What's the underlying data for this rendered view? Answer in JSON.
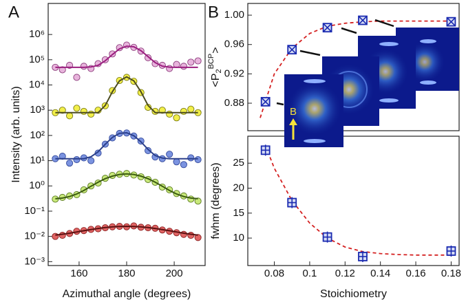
{
  "chart_data": [
    {
      "type": "scatter",
      "panel_label": "A",
      "ylabel": "Intensity (arb. units)",
      "xlabel": "Azimuthal angle (degrees)",
      "log_y": true,
      "xlim": [
        147,
        213
      ],
      "ylim": [
        0.0007,
        17000000
      ],
      "xticks": [
        160,
        180,
        200
      ],
      "yticks": [
        {
          "value": 0.001,
          "label": "10⁻³"
        },
        {
          "value": 0.01,
          "label": "10⁻²"
        },
        {
          "value": 0.1,
          "label": "10⁻¹"
        },
        {
          "value": 1,
          "label": "10⁰"
        },
        {
          "value": 10,
          "label": "10¹"
        },
        {
          "value": 100,
          "label": "10²"
        },
        {
          "value": 1000,
          "label": "10³"
        },
        {
          "value": 10000,
          "label": "10⁴"
        },
        {
          "value": 100000,
          "label": "10⁵"
        },
        {
          "value": 1000000,
          "label": "10⁶"
        }
      ],
      "x": [
        150,
        153,
        156,
        159,
        162,
        165,
        168,
        171,
        174,
        177,
        180,
        183,
        186,
        189,
        192,
        195,
        198,
        201,
        204,
        207,
        210
      ],
      "series": [
        {
          "color": "#e8b4dc",
          "edgecolor": "#8a3a7a",
          "fit_color": "#9b1f7f",
          "values": [
            50000,
            40000,
            60000,
            20000,
            55000,
            45000,
            70000,
            100000,
            170000,
            300000,
            380000,
            310000,
            220000,
            120000,
            70000,
            60000,
            45000,
            65000,
            55000,
            80000,
            90000
          ],
          "fit": [
            50000,
            50000,
            50000,
            50000,
            50000,
            52000,
            60000,
            91000,
            160000,
            270000,
            344000,
            327000,
            230000,
            133000,
            77000,
            56000,
            51000,
            50000,
            50000,
            50000,
            50000
          ]
        },
        {
          "color": "#f2ef4a",
          "edgecolor": "#7a7a10",
          "fit_color": "#4a4a20",
          "values": [
            800,
            1000,
            600,
            1200,
            900,
            700,
            1000,
            1500,
            6000,
            15000,
            20000,
            14000,
            5000,
            1300,
            900,
            1000,
            700,
            500,
            900,
            1100,
            800
          ],
          "fit": [
            800,
            800,
            800,
            800,
            800,
            800,
            800,
            1540,
            5400,
            14600,
            20800,
            14600,
            5400,
            1540,
            800,
            800,
            800,
            800,
            800,
            800,
            800
          ]
        },
        {
          "color": "#7b93e0",
          "edgecolor": "#33499a",
          "fit_color": "#2b3f8a",
          "values": [
            12,
            15,
            8,
            11,
            13,
            10,
            20,
            45,
            80,
            120,
            125,
            95,
            60,
            25,
            14,
            12,
            18,
            9,
            7,
            13,
            11
          ],
          "fit": [
            12,
            12,
            12,
            12,
            12,
            14.4,
            22.5,
            44.8,
            83.6,
            121,
            127.6,
            97.7,
            56,
            28,
            16,
            12.7,
            12,
            12,
            12,
            12,
            12
          ]
        },
        {
          "color": "#c8e87a",
          "edgecolor": "#5a7a20",
          "fit_color": "#3a5a10",
          "values": [
            0.3,
            0.35,
            0.4,
            0.45,
            0.7,
            1,
            1.3,
            2,
            2.6,
            2.9,
            3.1,
            2.7,
            2.3,
            1.8,
            1.4,
            0.9,
            0.7,
            0.5,
            0.4,
            0.3,
            0.25
          ],
          "fit": [
            0.31,
            0.33,
            0.38,
            0.48,
            0.66,
            0.97,
            1.4,
            1.94,
            2.45,
            2.85,
            3,
            2.85,
            2.45,
            1.94,
            1.4,
            0.97,
            0.66,
            0.48,
            0.38,
            0.33,
            0.31
          ]
        },
        {
          "color": "#e06464",
          "edgecolor": "#8a2020",
          "fit_color": "#5a1010",
          "values": [
            0.01,
            0.011,
            0.013,
            0.016,
            0.017,
            0.019,
            0.02,
            0.022,
            0.024,
            0.025,
            0.024,
            0.026,
            0.023,
            0.022,
            0.021,
            0.018,
            0.016,
            0.014,
            0.012,
            0.011,
            0.009
          ],
          "fit": [
            0.0112,
            0.0122,
            0.0134,
            0.015,
            0.0168,
            0.0187,
            0.0206,
            0.0224,
            0.0238,
            0.0247,
            0.025,
            0.0247,
            0.0238,
            0.0224,
            0.0206,
            0.0187,
            0.0168,
            0.015,
            0.0134,
            0.0122,
            0.0112
          ]
        }
      ]
    },
    {
      "type": "scatter",
      "panel_label": "B",
      "ylabel": {
        "main": "<P",
        "sub": "2",
        "sup": "BCP",
        "end": ">"
      },
      "annotation": "B",
      "marker": "x-square",
      "color": "#1a2ab0",
      "xlim": [
        0.065,
        0.1845
      ],
      "ylim": [
        0.8425,
        1.016
      ],
      "yticks": [
        {
          "value": 0.88,
          "label": "0.88"
        },
        {
          "value": 0.92,
          "label": "0.92"
        },
        {
          "value": 0.96,
          "label": "0.96"
        },
        {
          "value": 1,
          "label": "1.00"
        }
      ],
      "x": [
        0.075,
        0.09,
        0.11,
        0.13,
        0.18
      ],
      "values": [
        0.882,
        0.953,
        0.983,
        0.993,
        0.991
      ],
      "fit_x": [
        0.072,
        0.08,
        0.09,
        0.1,
        0.11,
        0.12,
        0.13,
        0.14,
        0.15,
        0.16,
        0.17,
        0.18
      ],
      "fit_values": [
        0.86,
        0.92,
        0.955,
        0.975,
        0.985,
        0.989,
        0.991,
        0.992,
        0.992,
        0.992,
        0.992,
        0.992
      ]
    },
    {
      "type": "scatter",
      "ylabel": "fwhm (degrees)",
      "xlabel": "Stoichiometry",
      "marker": "plus-square",
      "color": "#1a2ab0",
      "xlim": [
        0.065,
        0.1845
      ],
      "ylim": [
        4.5,
        30.4
      ],
      "xticks": [
        0.08,
        0.1,
        0.12,
        0.14,
        0.16,
        0.18
      ],
      "yticks": [
        10,
        15,
        20,
        25
      ],
      "x": [
        0.075,
        0.09,
        0.11,
        0.13,
        0.18
      ],
      "values": [
        27.6,
        17.1,
        10.2,
        6.3,
        7.4
      ],
      "fit_x": [
        0.075,
        0.08,
        0.09,
        0.1,
        0.11,
        0.12,
        0.13,
        0.14,
        0.15,
        0.16,
        0.17,
        0.18
      ],
      "fit_values": [
        28.5,
        24,
        17.5,
        13,
        10,
        8.2,
        7.3,
        6.9,
        6.7,
        6.6,
        6.6,
        6.6
      ]
    }
  ]
}
